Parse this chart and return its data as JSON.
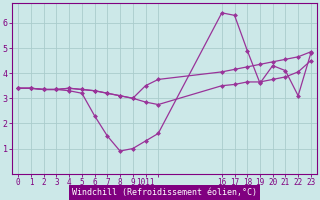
{
  "xlabel": "Windchill (Refroidissement éolien,°C)",
  "bg_color": "#cce8e8",
  "grid_color": "#aacccc",
  "line_color": "#993399",
  "axis_color": "#800080",
  "tick_color": "#800080",
  "xlim": [
    -0.5,
    23.5
  ],
  "ylim": [
    0,
    6.8
  ],
  "yticks": [
    1,
    2,
    3,
    4,
    5,
    6
  ],
  "x_positions": [
    0,
    1,
    2,
    3,
    4,
    5,
    6,
    7,
    8,
    9,
    10,
    11,
    16,
    17,
    18,
    19,
    20,
    21,
    22,
    23
  ],
  "x_labels": [
    "0",
    "1",
    "2",
    "3",
    "4",
    "5",
    "6",
    "7",
    "8",
    "9",
    "1011",
    "",
    "16",
    "17",
    "18",
    "19",
    "20",
    "21",
    "22",
    "23"
  ],
  "line1_y": [
    3.4,
    3.4,
    3.35,
    3.35,
    3.3,
    3.2,
    2.3,
    1.5,
    0.9,
    1.0,
    1.3,
    1.6,
    6.4,
    6.3,
    4.9,
    3.6,
    4.3,
    4.1,
    3.1,
    4.8
  ],
  "line2_y": [
    3.4,
    3.4,
    3.35,
    3.35,
    3.4,
    3.35,
    3.3,
    3.2,
    3.1,
    3.0,
    2.85,
    2.75,
    3.5,
    3.55,
    3.65,
    3.65,
    3.75,
    3.85,
    4.05,
    4.5
  ],
  "line3_y": [
    3.4,
    3.4,
    3.35,
    3.35,
    3.4,
    3.35,
    3.3,
    3.2,
    3.1,
    3.0,
    3.5,
    3.75,
    4.05,
    4.15,
    4.25,
    4.35,
    4.45,
    4.55,
    4.65,
    4.85
  ],
  "marker_size": 2.5,
  "line_width": 0.9,
  "xlabel_fontsize": 6,
  "tick_fontsize": 5.5,
  "ytick_fontsize": 6
}
